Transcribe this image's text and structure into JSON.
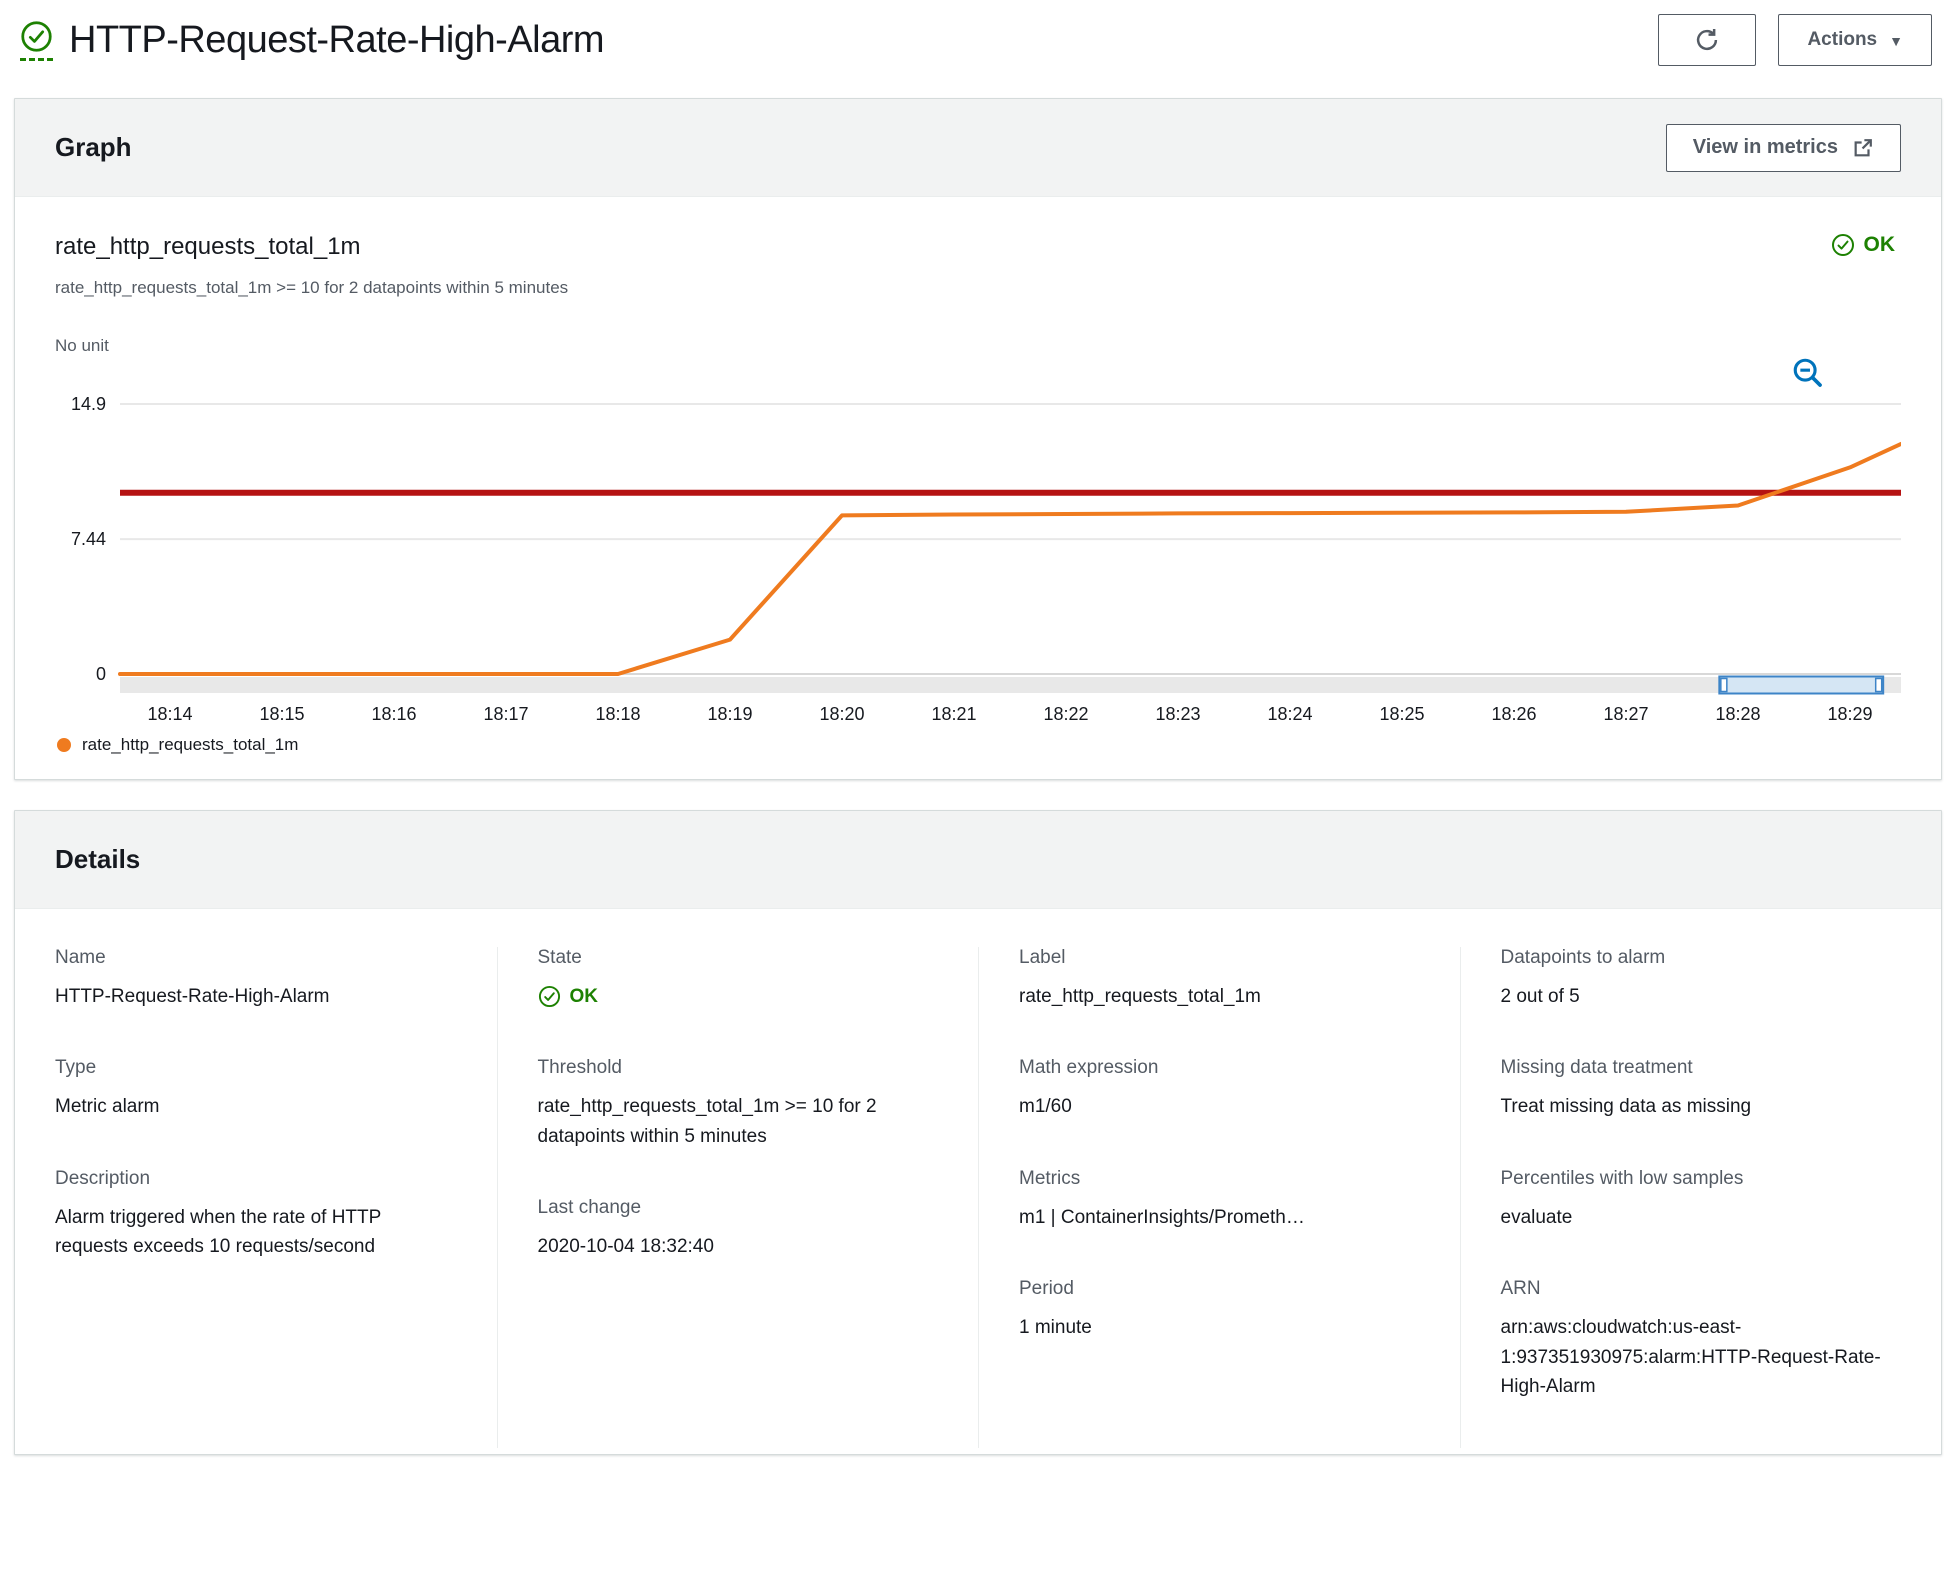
{
  "page": {
    "title": "HTTP-Request-Rate-High-Alarm"
  },
  "header": {
    "actions_label": "Actions"
  },
  "graph_card": {
    "header": "Graph",
    "view_in_metrics_label": "View in metrics",
    "status_label": "OK",
    "legend_label": "rate_http_requests_total_1m"
  },
  "chart_data": {
    "type": "line",
    "title": "rate_http_requests_total_1m",
    "subtitle": "rate_http_requests_total_1m >= 10 for 2 datapoints within 5 minutes",
    "y_axis_label": "No unit",
    "y_tick_labels": [
      "14.9",
      "7.44",
      "0"
    ],
    "y_tick_values": [
      14.9,
      7.44,
      0
    ],
    "y_range": [
      0,
      14.9
    ],
    "grid": true,
    "legend_position": "bottom-left",
    "x_ticks": [
      "18:14",
      "18:15",
      "18:16",
      "18:17",
      "18:18",
      "18:19",
      "18:20",
      "18:21",
      "18:22",
      "18:23",
      "18:24",
      "18:25",
      "18:26",
      "18:27",
      "18:28",
      "18:29"
    ],
    "series": [
      {
        "name": "rate_http_requests_total_1m",
        "color": "#ef7b1f",
        "values_at_ticks": [
          0,
          0,
          0,
          0,
          0,
          1.9,
          8.75,
          8.8,
          8.83,
          8.86,
          8.88,
          8.9,
          8.92,
          8.95,
          9.3,
          11.4
        ],
        "edge_start_value": 0,
        "edge_end_value": 12.7
      }
    ],
    "threshold": {
      "value": 10,
      "color": "#b51212"
    },
    "time_slider": {
      "x_fraction_start": 0.898,
      "x_fraction_end": 0.99
    }
  },
  "details_card": {
    "header": "Details",
    "columns": [
      {
        "fields": [
          {
            "label": "Name",
            "value": "HTTP-Request-Rate-High-Alarm"
          },
          {
            "label": "Type",
            "value": "Metric alarm"
          },
          {
            "label": "Description",
            "value": "Alarm triggered when the rate of HTTP requests exceeds 10 requests/second"
          }
        ]
      },
      {
        "fields": [
          {
            "label": "State",
            "value": "OK",
            "type": "status"
          },
          {
            "label": "Threshold",
            "value": "rate_http_requests_total_1m >= 10 for 2 datapoints within 5 minutes"
          },
          {
            "label": "Last change",
            "value": "2020-10-04 18:32:40"
          }
        ]
      },
      {
        "fields": [
          {
            "label": "Label",
            "value": "rate_http_requests_total_1m"
          },
          {
            "label": "Math expression",
            "value": "m1/60"
          },
          {
            "label": "Metrics",
            "value": "m1 | ContainerInsights/Prometh…"
          },
          {
            "label": "Period",
            "value": "1 minute"
          }
        ]
      },
      {
        "fields": [
          {
            "label": "Datapoints to alarm",
            "value": "2 out of 5"
          },
          {
            "label": "Missing data treatment",
            "value": "Treat missing data as missing"
          },
          {
            "label": "Percentiles with low samples",
            "value": "evaluate"
          },
          {
            "label": "ARN",
            "value": "arn:aws:cloudwatch:us-east-1:937351930975:alarm:HTTP-Request-Rate-High-Alarm"
          }
        ]
      }
    ]
  },
  "colors": {
    "success_green": "#1d8102",
    "series_orange": "#ef7b1f",
    "threshold_red": "#b51212",
    "link_blue": "#0073bb",
    "text_dark": "#16191f",
    "text_gray": "#545b64"
  }
}
